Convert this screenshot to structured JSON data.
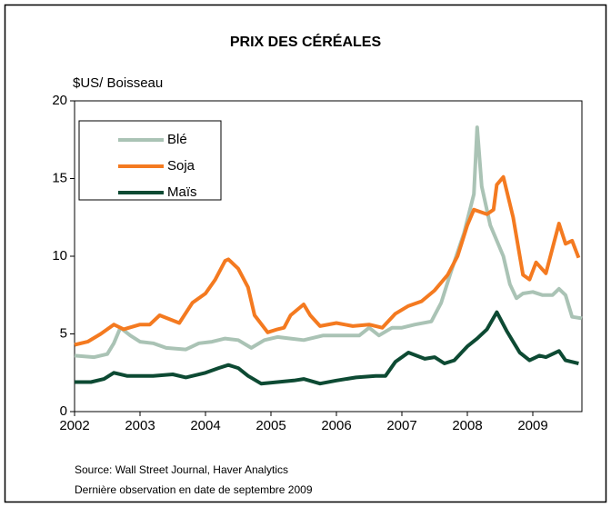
{
  "chart_data": {
    "type": "line",
    "title": "PRIX DES CÉRÉALES",
    "y_label": "$US/ Boisseau",
    "xlim": [
      2002,
      2009.75
    ],
    "xticks": [
      2002,
      2003,
      2004,
      2005,
      2006,
      2007,
      2008,
      2009
    ],
    "ylim": [
      0,
      20
    ],
    "yticks": [
      0,
      5,
      10,
      15,
      20
    ],
    "grid": false,
    "legend": "upper left",
    "series": [
      {
        "name": "Blé",
        "color": "#aac3b5",
        "x": [
          2002.0,
          2002.3,
          2002.5,
          2002.6,
          2002.7,
          2002.85,
          2003.0,
          2003.2,
          2003.4,
          2003.7,
          2003.9,
          2004.1,
          2004.3,
          2004.5,
          2004.7,
          2004.9,
          2005.1,
          2005.3,
          2005.5,
          2005.8,
          2006.1,
          2006.35,
          2006.5,
          2006.65,
          2006.85,
          2007.0,
          2007.2,
          2007.45,
          2007.6,
          2007.75,
          2007.95,
          2008.1,
          2008.15,
          2008.22,
          2008.35,
          2008.45,
          2008.55,
          2008.65,
          2008.75,
          2008.85,
          2009.0,
          2009.15,
          2009.3,
          2009.4,
          2009.5,
          2009.6,
          2009.75
        ],
        "values": [
          3.6,
          3.5,
          3.7,
          4.4,
          5.4,
          4.9,
          4.5,
          4.4,
          4.1,
          4.0,
          4.4,
          4.5,
          4.7,
          4.6,
          4.1,
          4.6,
          4.8,
          4.7,
          4.6,
          4.9,
          4.9,
          4.9,
          5.4,
          4.9,
          5.4,
          5.4,
          5.6,
          5.8,
          7.0,
          9.0,
          11.5,
          14.0,
          18.3,
          14.5,
          12.0,
          11.0,
          10.0,
          8.2,
          7.3,
          7.6,
          7.7,
          7.5,
          7.5,
          7.9,
          7.5,
          6.1,
          6.0
        ]
      },
      {
        "name": "Soja",
        "color": "#f47a20",
        "x": [
          2002.0,
          2002.2,
          2002.4,
          2002.6,
          2002.75,
          2003.0,
          2003.15,
          2003.3,
          2003.6,
          2003.8,
          2004.0,
          2004.15,
          2004.3,
          2004.35,
          2004.5,
          2004.65,
          2004.75,
          2004.95,
          2005.1,
          2005.2,
          2005.3,
          2005.5,
          2005.6,
          2005.75,
          2006.0,
          2006.25,
          2006.5,
          2006.7,
          2006.9,
          2007.1,
          2007.3,
          2007.5,
          2007.7,
          2007.85,
          2008.0,
          2008.1,
          2008.3,
          2008.4,
          2008.45,
          2008.55,
          2008.7,
          2008.85,
          2008.95,
          2009.05,
          2009.2,
          2009.3,
          2009.4,
          2009.5,
          2009.6,
          2009.7
        ],
        "values": [
          4.3,
          4.5,
          5.0,
          5.6,
          5.3,
          5.6,
          5.6,
          6.2,
          5.7,
          7.0,
          7.6,
          8.5,
          9.7,
          9.8,
          9.2,
          8.0,
          6.2,
          5.1,
          5.3,
          5.4,
          6.2,
          6.9,
          6.2,
          5.5,
          5.7,
          5.5,
          5.6,
          5.4,
          6.3,
          6.8,
          7.1,
          7.8,
          8.8,
          10.0,
          12.0,
          13.0,
          12.7,
          13.0,
          14.6,
          15.1,
          12.5,
          8.8,
          8.5,
          9.6,
          8.9,
          10.5,
          12.1,
          10.8,
          11.0,
          9.9
        ]
      },
      {
        "name": "Maïs",
        "color": "#0d4a33",
        "x": [
          2002.0,
          2002.25,
          2002.45,
          2002.6,
          2002.8,
          2003.2,
          2003.5,
          2003.7,
          2004.0,
          2004.2,
          2004.35,
          2004.5,
          2004.65,
          2004.85,
          2005.1,
          2005.35,
          2005.5,
          2005.75,
          2006.0,
          2006.3,
          2006.6,
          2006.75,
          2006.9,
          2007.1,
          2007.35,
          2007.5,
          2007.65,
          2007.8,
          2008.0,
          2008.15,
          2008.3,
          2008.45,
          2008.6,
          2008.7,
          2008.8,
          2008.95,
          2009.1,
          2009.2,
          2009.4,
          2009.5,
          2009.7
        ],
        "values": [
          1.9,
          1.9,
          2.1,
          2.5,
          2.3,
          2.3,
          2.4,
          2.2,
          2.5,
          2.8,
          3.0,
          2.8,
          2.3,
          1.8,
          1.9,
          2.0,
          2.1,
          1.8,
          2.0,
          2.2,
          2.3,
          2.3,
          3.2,
          3.8,
          3.4,
          3.5,
          3.1,
          3.3,
          4.2,
          4.7,
          5.3,
          6.4,
          5.2,
          4.5,
          3.8,
          3.3,
          3.6,
          3.5,
          3.9,
          3.3,
          3.1
        ]
      }
    ],
    "source": "Source: Wall Street Journal, Haver Analytics",
    "note": "Dernière observation en date de septembre 2009"
  }
}
